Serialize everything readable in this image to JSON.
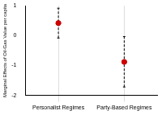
{
  "chart_data": {
    "type": "scatter",
    "categories": [
      "Personalist Regimes",
      "Party-Based Regimes"
    ],
    "values": [
      0.42,
      -0.88
    ],
    "lower": [
      -0.08,
      -1.72
    ],
    "upper": [
      0.92,
      -0.03
    ],
    "color": "#cc0000",
    "marker": "circle",
    "ylabel": "Marginal Effects of Oil-Gas Value per capita",
    "ylim": [
      -2,
      1
    ],
    "yticks": [
      -2,
      -1,
      0,
      1
    ],
    "grid": true
  }
}
